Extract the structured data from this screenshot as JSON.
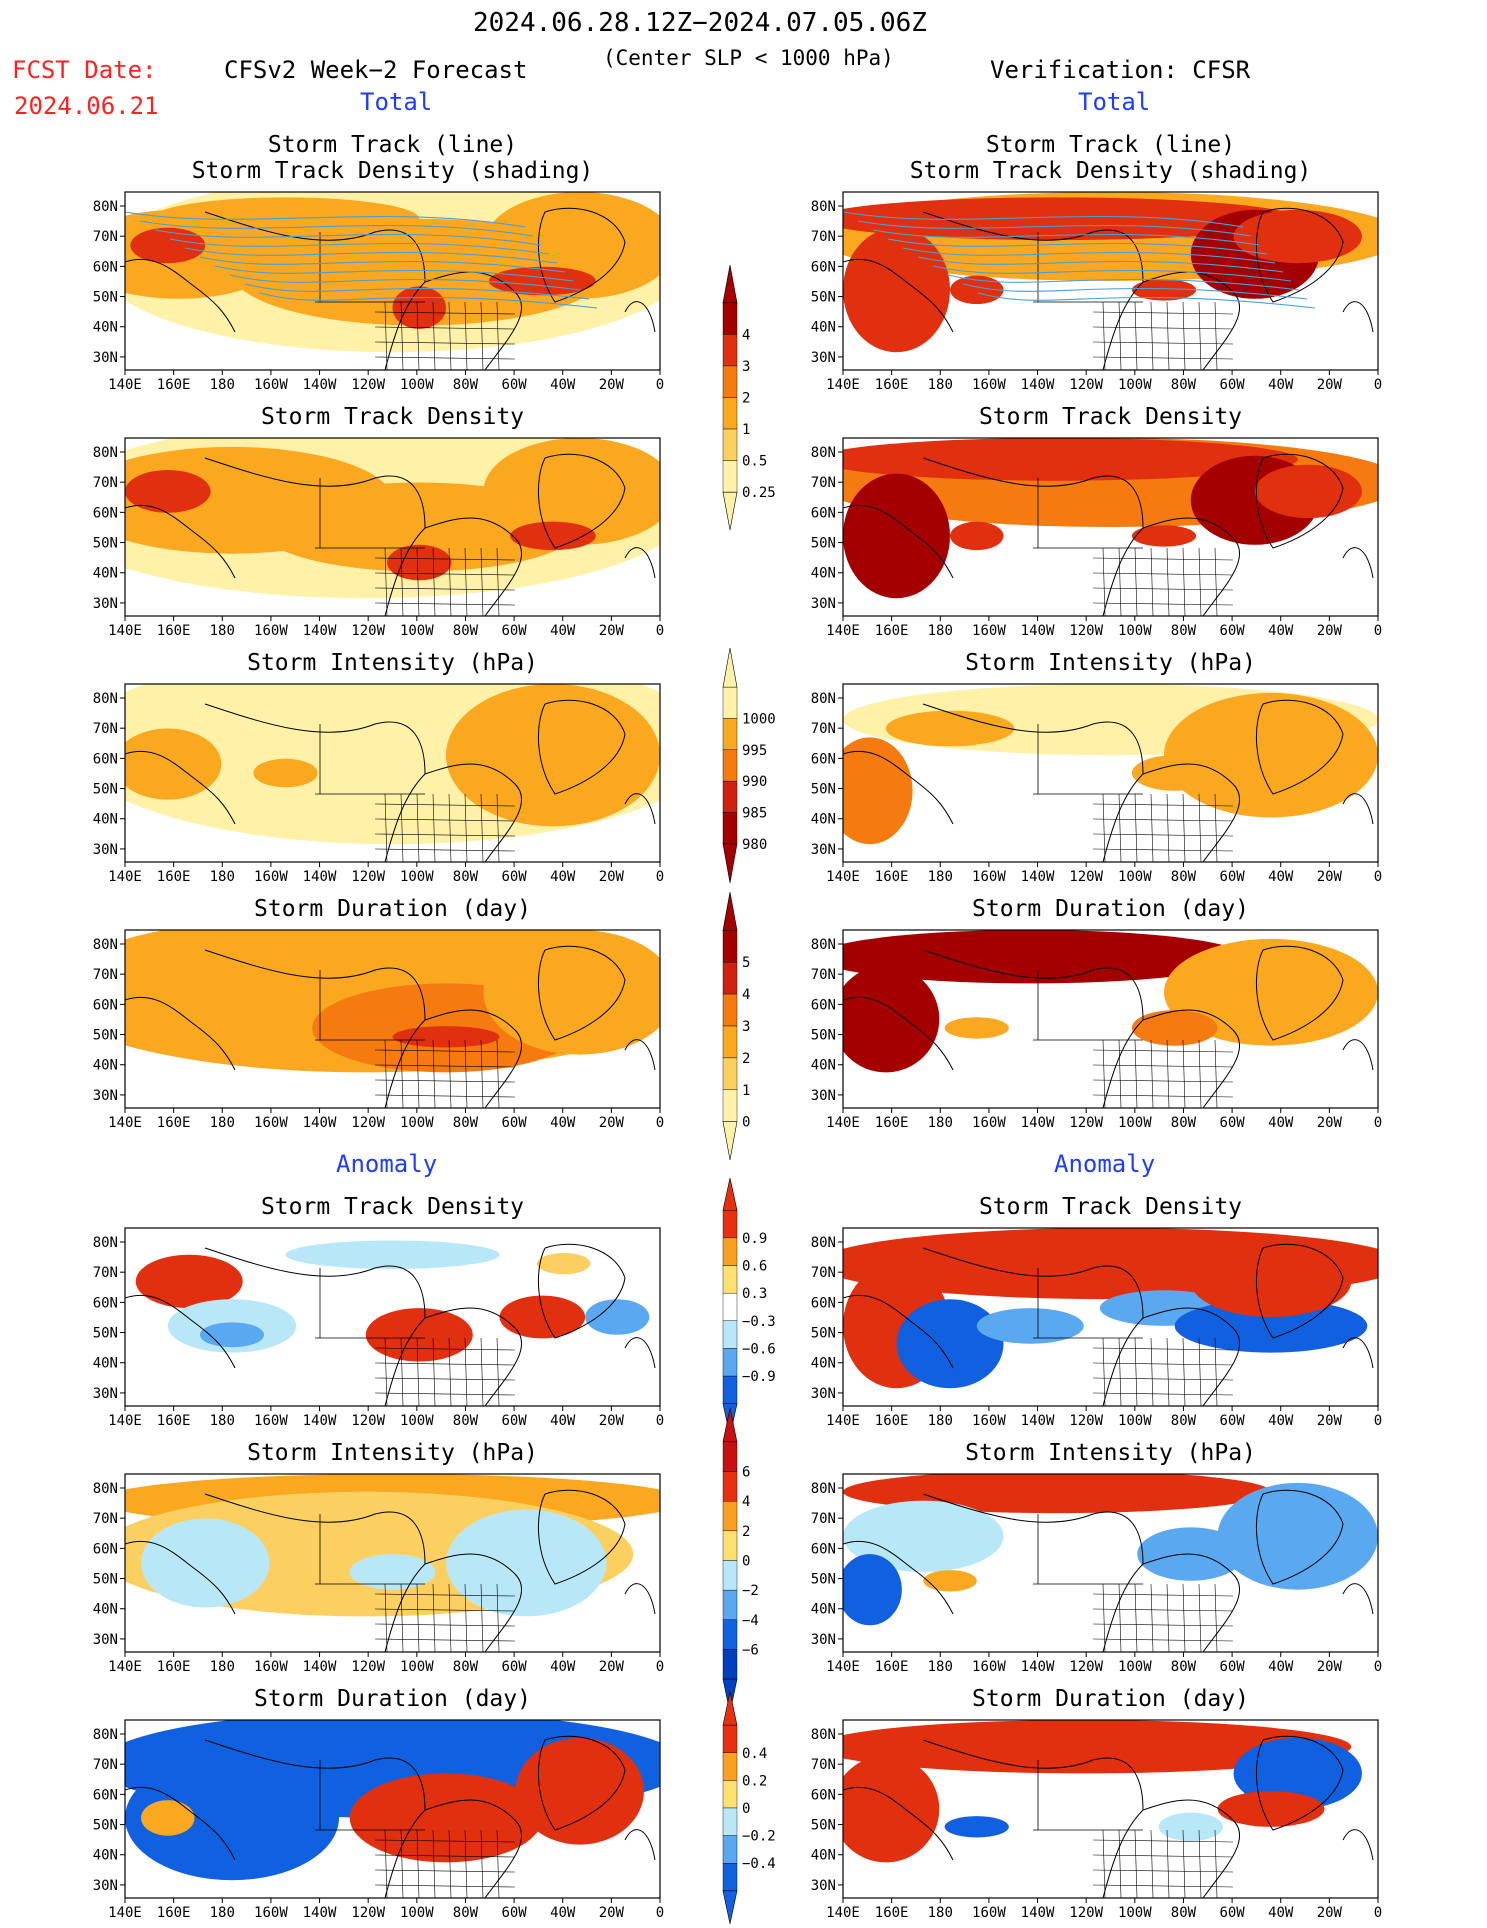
{
  "header": {
    "date_range": "2024.06.28.12Z−2024.07.05.06Z",
    "subtitle": "(Center SLP < 1000 hPa)",
    "fcst_label": "FCST Date:",
    "fcst_date": "2024.06.21",
    "left_title": "CFSv2 Week−2 Forecast",
    "right_title": "Verification: CFSR",
    "left_section_total": "Total",
    "right_section_total": "Total",
    "left_section_anomaly": "Anomaly",
    "right_section_anomaly": "Anomaly"
  },
  "panel_titles": {
    "track_line": "Storm Track (line)",
    "track_shading": "Storm Track Density (shading)",
    "density": "Storm Track Density",
    "intensity": "Storm Intensity (hPa)",
    "duration": "Storm Duration (day)"
  },
  "axes": {
    "lat_labels": [
      "80N",
      "70N",
      "60N",
      "50N",
      "40N",
      "30N"
    ],
    "lon_labels": [
      "140E",
      "160E",
      "180",
      "160W",
      "140W",
      "120W",
      "100W",
      "80W",
      "60W",
      "40W",
      "20W",
      "0"
    ]
  },
  "colorbars": {
    "density_total": {
      "labels": [
        "4",
        "3",
        "2",
        "1",
        "0.5",
        "0.25"
      ],
      "colors": [
        "#a50000",
        "#e03010",
        "#f57a10",
        "#f9a820",
        "#fcd060",
        "#fff2a8"
      ]
    },
    "intensity_total": {
      "labels": [
        "1000",
        "995",
        "990",
        "985",
        "980"
      ],
      "colors": [
        "#fff2a8",
        "#f9a820",
        "#f57a10",
        "#d02010",
        "#a50000"
      ]
    },
    "duration_total": {
      "labels": [
        "5",
        "4",
        "3",
        "2",
        "1",
        "0"
      ],
      "colors": [
        "#a50000",
        "#d02010",
        "#f57a10",
        "#f9a820",
        "#fcd060",
        "#fff2a8"
      ]
    },
    "density_anom": {
      "labels": [
        "0.9",
        "0.6",
        "0.3",
        "−0.3",
        "−0.6",
        "−0.9"
      ],
      "colors": [
        "#e83010",
        "#f9a020",
        "#fce070",
        "#ffffff",
        "#b8e8f8",
        "#5aa8f0",
        "#1060e0"
      ]
    },
    "intensity_anom": {
      "labels": [
        "6",
        "4",
        "2",
        "0",
        "−2",
        "−4",
        "−6"
      ],
      "colors": [
        "#c81010",
        "#e83010",
        "#f9a020",
        "#fce070",
        "#b8e8f8",
        "#5aa8f0",
        "#1060e0",
        "#0040c0"
      ]
    },
    "duration_anom": {
      "labels": [
        "0.4",
        "0.2",
        "0",
        "−0.2",
        "−0.4"
      ],
      "colors": [
        "#e83010",
        "#f9a020",
        "#fce070",
        "#b8e8f8",
        "#5aa8f0",
        "#1060e0"
      ]
    }
  },
  "colors": {
    "land_line": "#000000",
    "track_line": "#4a9fd8"
  }
}
